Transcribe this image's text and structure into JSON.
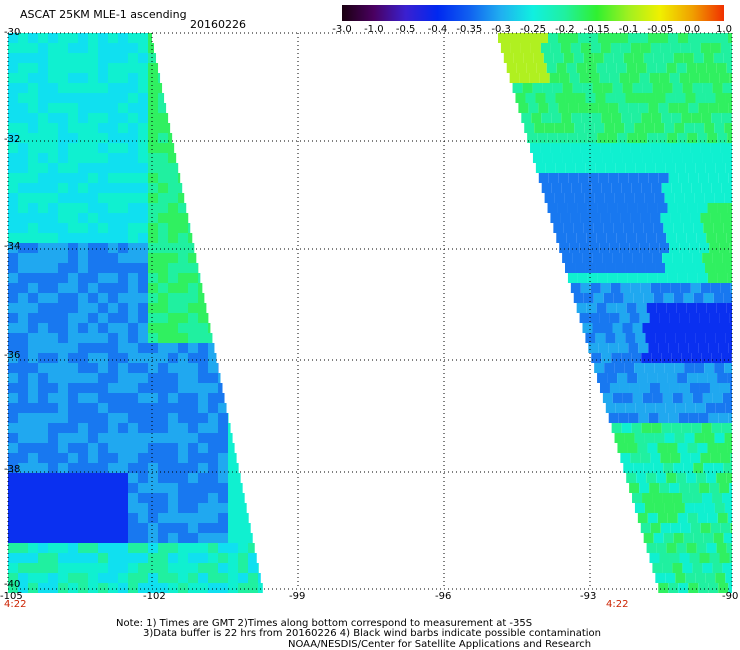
{
  "header": {
    "title": "ASCAT 25KM MLE-1 ascending",
    "date": "20160226"
  },
  "colorbar": {
    "labels": [
      "-3.0",
      "-1.0",
      "-0.5",
      "-0.4",
      "-0.35",
      "-0.3",
      "-0.25",
      "-0.2",
      "-0.15",
      "-0.1",
      "-0.05",
      "0.0",
      "1.0"
    ],
    "colors": [
      "#1a0010",
      "#4a0060",
      "#3a20d0",
      "#0028f0",
      "#1060f0",
      "#20b0f0",
      "#10f0e0",
      "#20f0a0",
      "#30f030",
      "#a0f020",
      "#f0f000",
      "#f0a000",
      "#f03000"
    ]
  },
  "map": {
    "lat_labels": [
      "-30",
      "-32",
      "-34",
      "-36",
      "-38",
      "-40"
    ],
    "lon_labels": [
      "-105",
      "-102",
      "-99",
      "-96",
      "-93",
      "-90"
    ],
    "swath_times": [
      "4:22",
      "4:22"
    ]
  },
  "notes": {
    "line1": "Note: 1) Times are GMT 2)Times along bottom correspond to measurement at -35S",
    "line2": "3)Data buffer is 22 hrs from 20160226 4) Black wind barbs indicate possible contamination",
    "line3": "NOAA/NESDIS/Center for Satellite Applications and Research"
  }
}
